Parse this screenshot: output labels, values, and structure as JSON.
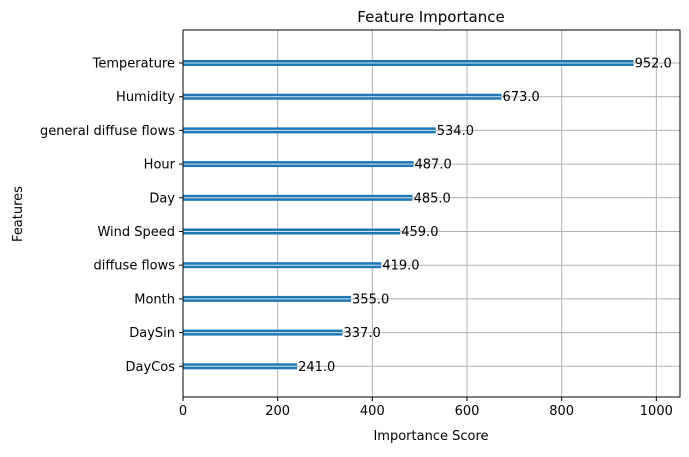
{
  "chart_data": {
    "type": "bar",
    "orientation": "horizontal",
    "title": "Feature Importance",
    "xlabel": "Importance Score",
    "ylabel": "Features",
    "xlim": [
      0,
      1050
    ],
    "x_ticks": [
      0,
      200,
      400,
      600,
      800,
      1000
    ],
    "x_tick_labels": [
      "0",
      "200",
      "400",
      "600",
      "800",
      "1000"
    ],
    "grid": true,
    "categories": [
      "Temperature",
      "Humidity",
      "general diffuse flows",
      "Hour",
      "Day",
      "Wind Speed",
      "diffuse flows",
      "Month",
      "DaySin",
      "DayCos"
    ],
    "values": [
      952,
      673,
      534,
      487,
      485,
      459,
      419,
      355,
      337,
      241
    ],
    "value_labels": [
      "952.0",
      "673.0",
      "534.0",
      "487.0",
      "485.0",
      "459.0",
      "419.0",
      "355.0",
      "337.0",
      "241.0"
    ],
    "bar_color": "#1f77b4",
    "grid_color": "#b0b0b0"
  }
}
